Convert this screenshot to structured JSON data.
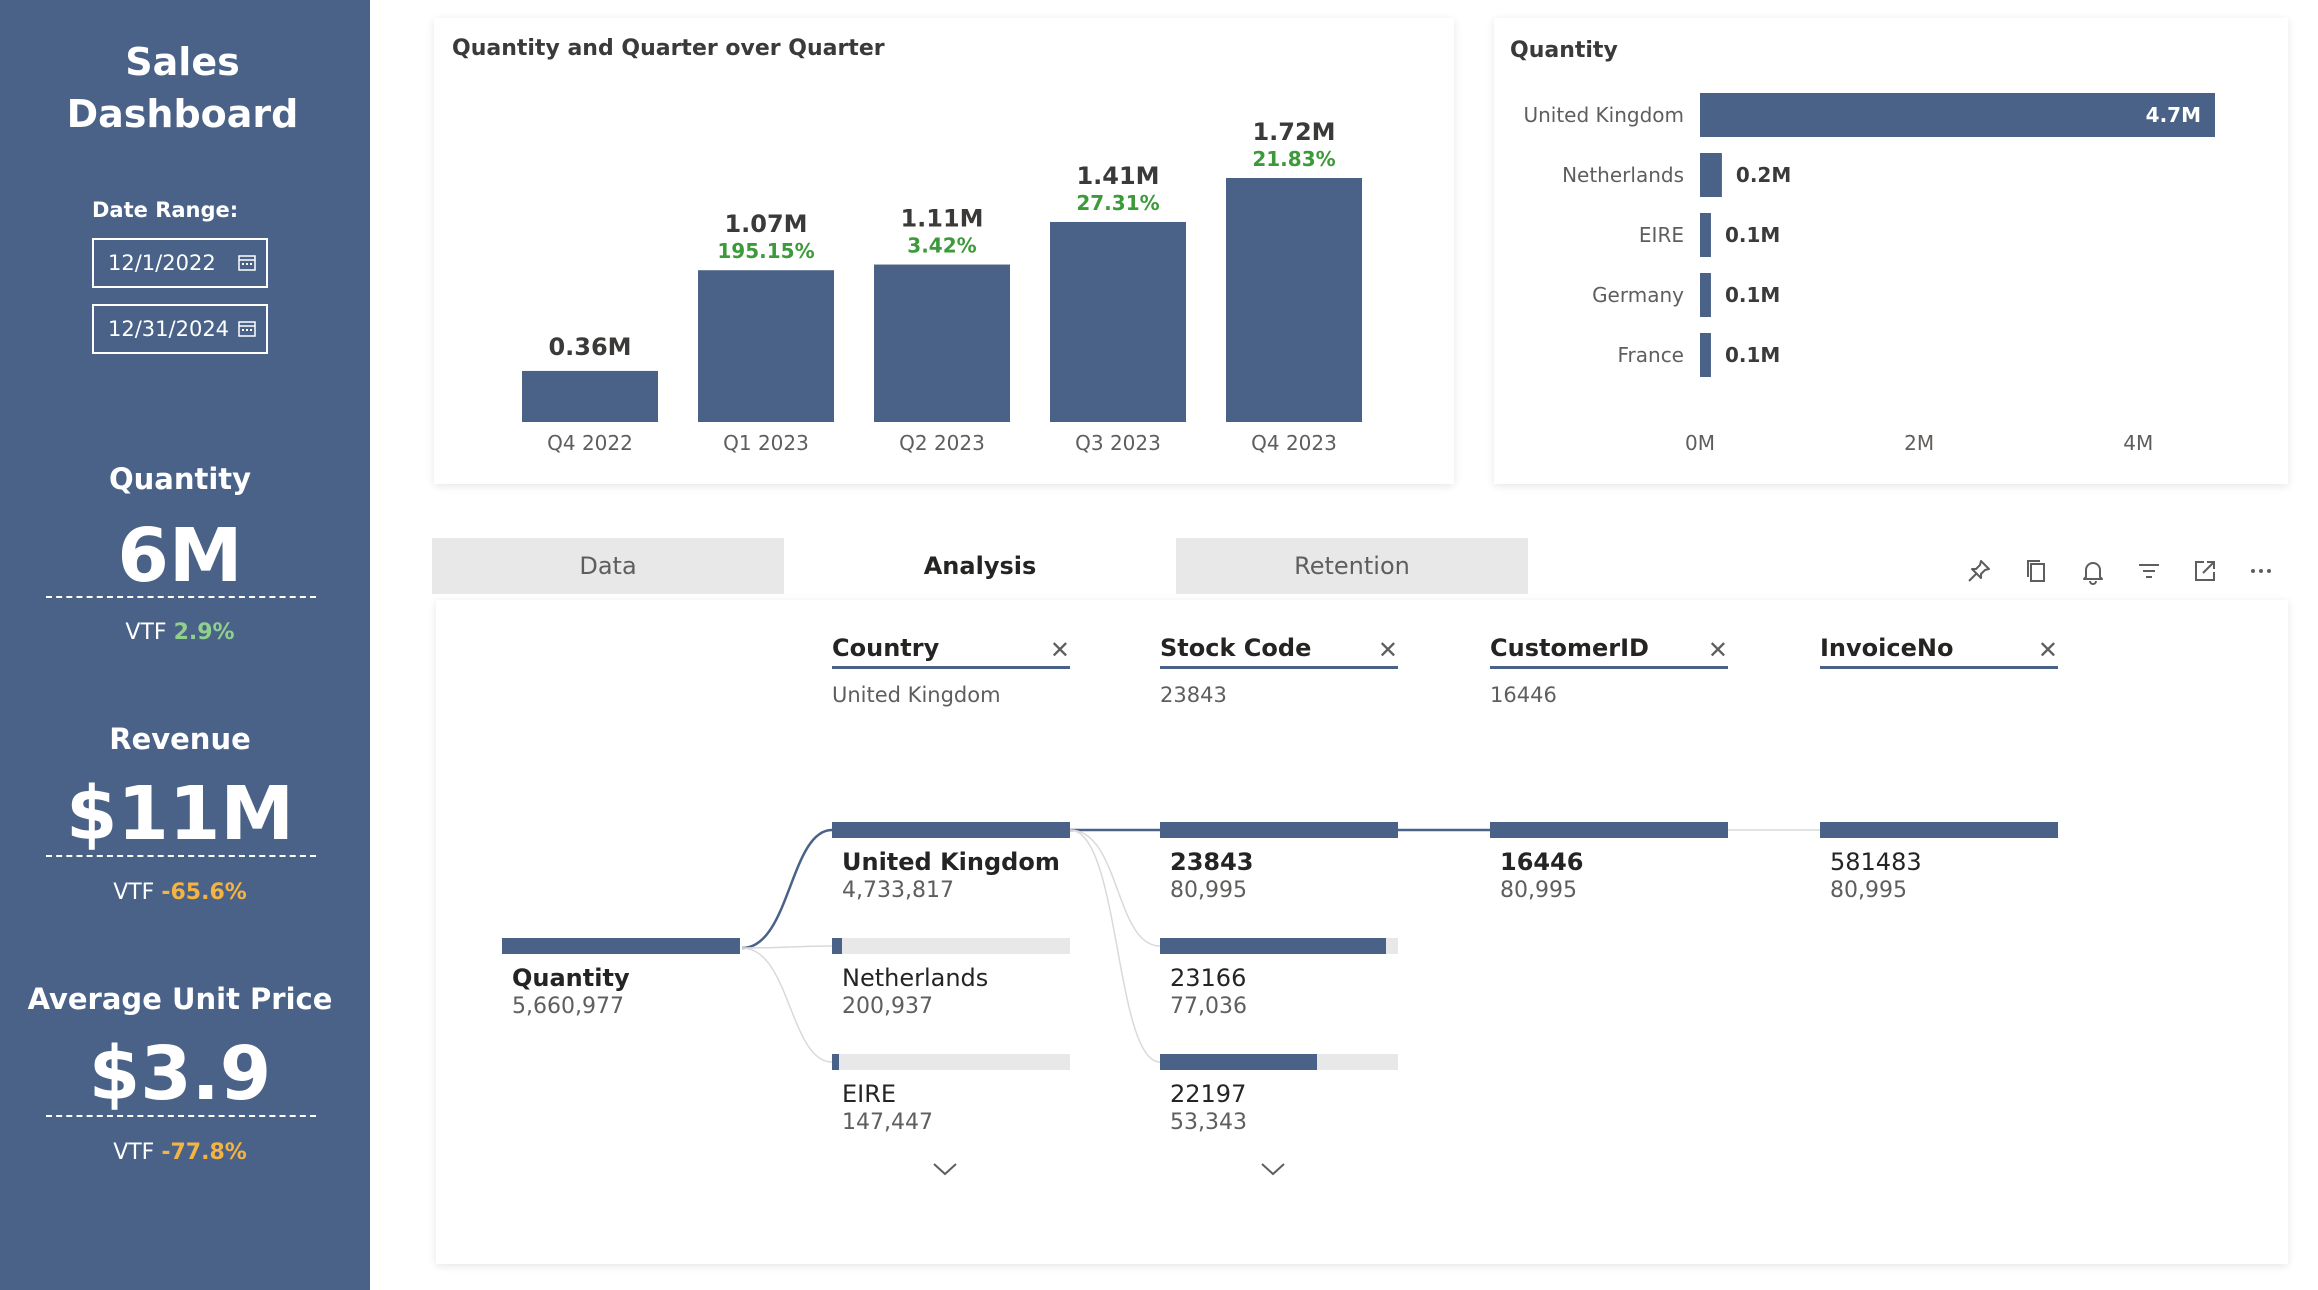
{
  "sidebar": {
    "title_line1": "Sales",
    "title_line2": "Dashboard",
    "date_range_label": "Date Range:",
    "date_start": "12/1/2022",
    "date_end": "12/31/2024",
    "kpis": [
      {
        "label": "Quantity",
        "value": "6M",
        "vtf_prefix": "VTF",
        "vtf_value": "2.9%",
        "vtf_status": "positive"
      },
      {
        "label": "Revenue",
        "value": "$11M",
        "vtf_prefix": "VTF",
        "vtf_value": "-65.6%",
        "vtf_status": "negative"
      },
      {
        "label": "Average Unit Price",
        "value": "$3.9",
        "vtf_prefix": "VTF",
        "vtf_value": "-77.8%",
        "vtf_status": "negative"
      }
    ]
  },
  "colors": {
    "accent": "#4a6288",
    "positive_pct": "#3d9a3a",
    "negative_pct": "#f5b342"
  },
  "chart_data": [
    {
      "type": "bar",
      "title": "Quantity and Quarter over Quarter",
      "categories": [
        "Q4 2022",
        "Q1 2023",
        "Q2 2023",
        "Q3 2023",
        "Q4 2023"
      ],
      "values": [
        0.36,
        1.07,
        1.11,
        1.41,
        1.72
      ],
      "value_labels": [
        "0.36M",
        "1.07M",
        "1.11M",
        "1.41M",
        "1.72M"
      ],
      "qoq_labels": [
        "",
        "195.15%",
        "3.42%",
        "27.31%",
        "21.83%"
      ],
      "ylim": [
        0,
        1.72
      ],
      "grid": false
    },
    {
      "type": "bar",
      "orientation": "horizontal",
      "title": "Quantity",
      "categories": [
        "United Kingdom",
        "Netherlands",
        "EIRE",
        "Germany",
        "France"
      ],
      "values": [
        4.7,
        0.2,
        0.1,
        0.1,
        0.1
      ],
      "value_labels": [
        "4.7M",
        "0.2M",
        "0.1M",
        "0.1M",
        "0.1M"
      ],
      "xticks": [
        "0M",
        "2M",
        "4M"
      ],
      "xtick_values": [
        0,
        2,
        4
      ],
      "xlim": [
        0,
        5.6
      ],
      "grid": false
    }
  ],
  "tabs": [
    {
      "label": "Data",
      "active": false
    },
    {
      "label": "Analysis",
      "active": true
    },
    {
      "label": "Retention",
      "active": false
    }
  ],
  "toolbar_icons": [
    "pin-icon",
    "copy-icon",
    "bell-icon",
    "filter-icon",
    "focus-mode-icon",
    "more-options-icon"
  ],
  "decomp_tree": {
    "root": {
      "label": "Quantity",
      "value": "5,660,977"
    },
    "columns": [
      {
        "header": "Country",
        "selected": "United Kingdom",
        "nodes": [
          {
            "label": "United Kingdom",
            "value": "4,733,817",
            "fraction": 1.0,
            "selected": true
          },
          {
            "label": "Netherlands",
            "value": "200,937",
            "fraction": 0.042,
            "selected": false
          },
          {
            "label": "EIRE",
            "value": "147,447",
            "fraction": 0.031,
            "selected": false
          }
        ]
      },
      {
        "header": "Stock Code",
        "selected": "23843",
        "nodes": [
          {
            "label": "23843",
            "value": "80,995",
            "fraction": 1.0,
            "selected": true
          },
          {
            "label": "23166",
            "value": "77,036",
            "fraction": 0.951,
            "selected": false
          },
          {
            "label": "22197",
            "value": "53,343",
            "fraction": 0.659,
            "selected": false
          }
        ]
      },
      {
        "header": "CustomerID",
        "selected": "16446",
        "nodes": [
          {
            "label": "16446",
            "value": "80,995",
            "fraction": 1.0,
            "selected": true
          }
        ]
      },
      {
        "header": "InvoiceNo",
        "selected": "",
        "nodes": [
          {
            "label": "581483",
            "value": "80,995",
            "fraction": 1.0,
            "selected": false
          }
        ]
      }
    ]
  }
}
